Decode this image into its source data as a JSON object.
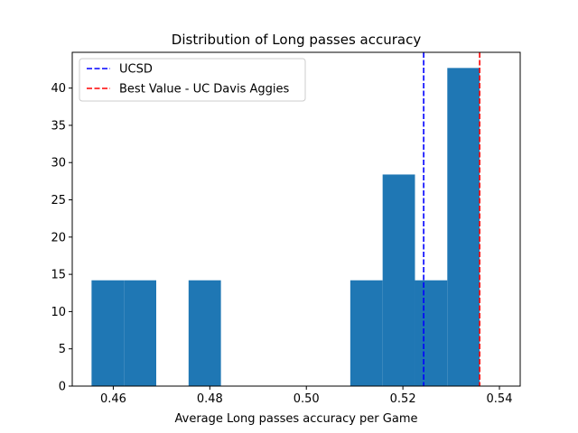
{
  "chart_data": {
    "type": "bar",
    "title": "Distribution of Long passes accuracy",
    "xlabel": "Average Long passes accuracy per Game",
    "ylabel": "",
    "xlim": [
      0.4515,
      0.5443
    ],
    "ylim": [
      0,
      44.8
    ],
    "x_ticks": [
      "0.46",
      "0.48",
      "0.50",
      "0.52",
      "0.54"
    ],
    "y_ticks": [
      "0",
      "5",
      "10",
      "15",
      "20",
      "25",
      "30",
      "35",
      "40"
    ],
    "bar_color": "#1f77b4",
    "bins": [
      {
        "x0": 0.4555,
        "x1": 0.4622,
        "value": 14.2
      },
      {
        "x0": 0.4622,
        "x1": 0.4689,
        "value": 14.2
      },
      {
        "x0": 0.4689,
        "x1": 0.4756,
        "value": 0
      },
      {
        "x0": 0.4756,
        "x1": 0.4823,
        "value": 14.2
      },
      {
        "x0": 0.4823,
        "x1": 0.489,
        "value": 0
      },
      {
        "x0": 0.489,
        "x1": 0.4957,
        "value": 0
      },
      {
        "x0": 0.4957,
        "x1": 0.5024,
        "value": 0
      },
      {
        "x0": 0.5024,
        "x1": 0.5091,
        "value": 0
      },
      {
        "x0": 0.5091,
        "x1": 0.5158,
        "value": 14.2
      },
      {
        "x0": 0.5158,
        "x1": 0.5225,
        "value": 28.4
      },
      {
        "x0": 0.5225,
        "x1": 0.5292,
        "value": 14.2
      },
      {
        "x0": 0.5292,
        "x1": 0.5359,
        "value": 42.7
      }
    ],
    "reference_lines": [
      {
        "label": "UCSD",
        "x": 0.5243,
        "color": "#0000ff",
        "style": "dashed"
      },
      {
        "label": "Best Value - UC Davis Aggies",
        "x": 0.5359,
        "color": "#ff0000",
        "style": "dashed"
      }
    ],
    "legend_position": "top-left",
    "grid": false
  }
}
